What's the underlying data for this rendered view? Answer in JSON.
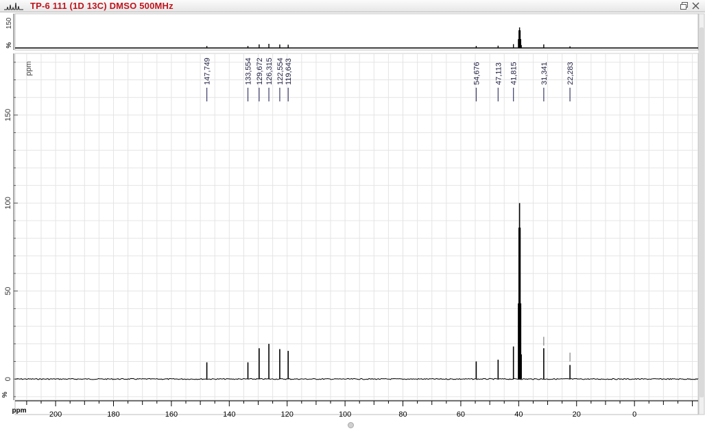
{
  "window": {
    "title": "TP-6 111 (1D 13C) DMSO 500MHz"
  },
  "colors": {
    "title": "#c0141c",
    "trace": "#000000",
    "peak_label": "#222244",
    "peak_marker": "#3a3a6a",
    "grid": "#e4e4e4"
  },
  "chart_data": {
    "type": "line",
    "title": "",
    "xlabel": "ppm",
    "ylabel": "ppm",
    "x_reversed": true,
    "xlim": [
      214,
      -22
    ],
    "ylim": [
      -12,
      185
    ],
    "x_ticks": [
      "200",
      "180",
      "160",
      "140",
      "120",
      "100",
      "80",
      "60",
      "40",
      "20",
      "0"
    ],
    "y_ticks": [
      "0",
      "50",
      "100",
      "150"
    ],
    "grid": true,
    "overview_ticks": [
      "150",
      "%"
    ],
    "peak_labels": [
      "147,749",
      "133,554",
      "129,672",
      "126,315",
      "122,554",
      "119,643",
      "54,676",
      "47,113",
      "41,815",
      "31,341",
      "22,283"
    ],
    "series": [
      {
        "peaks": [
          {
            "ppm": 147.749,
            "height": 9.5
          },
          {
            "ppm": 133.554,
            "height": 9.5
          },
          {
            "ppm": 129.672,
            "height": 17.5
          },
          {
            "ppm": 126.315,
            "height": 20
          },
          {
            "ppm": 122.554,
            "height": 17
          },
          {
            "ppm": 119.643,
            "height": 16
          },
          {
            "ppm": 54.676,
            "height": 10
          },
          {
            "ppm": 47.113,
            "height": 11
          },
          {
            "ppm": 41.815,
            "height": 18.5
          },
          {
            "ppm": 40.1,
            "height": 43
          },
          {
            "ppm": 39.9,
            "height": 86
          },
          {
            "ppm": 39.7,
            "height": 100
          },
          {
            "ppm": 39.5,
            "height": 86
          },
          {
            "ppm": 39.3,
            "height": 43
          },
          {
            "ppm": 39.1,
            "height": 14
          },
          {
            "ppm": 31.341,
            "height": 17.5
          },
          {
            "ppm": 22.283,
            "height": 8
          }
        ],
        "integrals": [
          {
            "ppm": 31.341,
            "from": 19,
            "to": 24
          },
          {
            "ppm": 22.283,
            "from": 10,
            "to": 15
          }
        ]
      }
    ]
  }
}
